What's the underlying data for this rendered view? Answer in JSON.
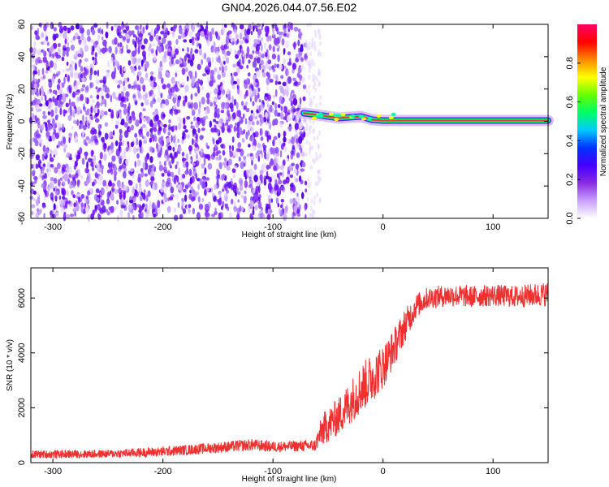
{
  "title": "GN04.2026.044.07.56.E02",
  "chart_data": [
    {
      "type": "heatmap",
      "xlabel": "Height of straight line (km)",
      "ylabel": "Frequency (Hz)",
      "xlim": [
        -320,
        150
      ],
      "ylim": [
        -60,
        60
      ],
      "x_ticks": [
        -300,
        -200,
        -100,
        0,
        100
      ],
      "y_ticks": [
        -60,
        -40,
        -20,
        0,
        20,
        40,
        60
      ],
      "x_tick_labels": [
        "-300",
        "-200",
        "-100",
        "0",
        "100"
      ],
      "y_tick_labels": [
        "-60",
        "-40",
        "-20",
        "0",
        "20",
        "40",
        "60"
      ],
      "noise_region_x": [
        -320,
        -70
      ],
      "signal_line": {
        "description_values": [
          {
            "x": -72,
            "freq": 5
          },
          {
            "x": -60,
            "freq": 4
          },
          {
            "x": -40,
            "freq": 2
          },
          {
            "x": -20,
            "freq": 3
          },
          {
            "x": -10,
            "freq": 1
          },
          {
            "x": 0,
            "freq": 0.5
          },
          {
            "x": 150,
            "freq": 0.5
          }
        ]
      },
      "colorbar": {
        "label": "Normalized spectral amplitude",
        "range": [
          0.0,
          1.0
        ],
        "ticks": [
          0.0,
          0.2,
          0.4,
          0.6,
          0.8
        ],
        "tick_labels": [
          "0.0",
          "0.2",
          "0.4",
          "0.6",
          "0.8"
        ],
        "colors": [
          "#ffffff",
          "#c9a0ff",
          "#8a2be2",
          "#4400ff",
          "#0033ff",
          "#00c8ff",
          "#00ff66",
          "#66ff00",
          "#ffff00",
          "#ff8800",
          "#ff0000",
          "#ff0066"
        ]
      },
      "grid": false
    },
    {
      "type": "line",
      "xlabel": "Height of straight line (km)",
      "ylabel": "SNR (10 * v/v)",
      "xlim": [
        -320,
        150
      ],
      "ylim": [
        0,
        7100
      ],
      "x_ticks": [
        -300,
        -200,
        -100,
        0,
        100
      ],
      "y_ticks": [
        0,
        2000,
        4000,
        6000
      ],
      "x_tick_labels": [
        "-300",
        "-200",
        "-100",
        "0",
        "100"
      ],
      "y_tick_labels": [
        "0",
        "2000",
        "4000",
        "6000"
      ],
      "series": [
        {
          "color": "#f03030",
          "x": [
            -320,
            -250,
            -200,
            -150,
            -120,
            -100,
            -80,
            -62,
            -55,
            -40,
            -30,
            -20,
            -10,
            0,
            10,
            20,
            30,
            40,
            60,
            80,
            100,
            120,
            150
          ],
          "y": [
            300,
            320,
            400,
            550,
            650,
            580,
            600,
            620,
            1200,
            1700,
            2200,
            2700,
            3100,
            3500,
            4200,
            5000,
            5700,
            6000,
            6100,
            6050,
            6100,
            6050,
            6150
          ],
          "noise_amplitude": [
            150,
            150,
            180,
            200,
            220,
            200,
            200,
            220,
            600,
            700,
            800,
            900,
            900,
            800,
            700,
            600,
            450,
            400,
            400,
            400,
            400,
            400,
            450
          ]
        }
      ],
      "grid": false
    }
  ]
}
